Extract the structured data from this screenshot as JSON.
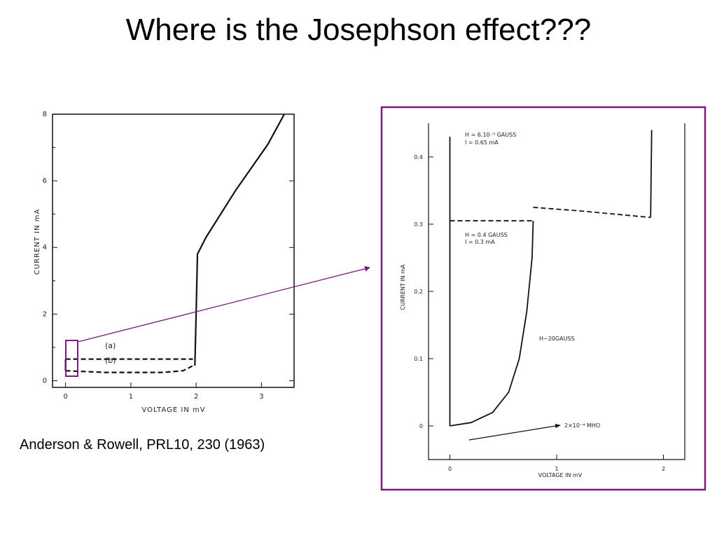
{
  "title": "Where is the Josephson effect???",
  "caption": "Anderson & Rowell, PRL10, 230 (1963)",
  "colors": {
    "frame": "#7a1a7a",
    "curve": "#111111"
  },
  "chart_data": [
    {
      "type": "line",
      "xlabel": "VOLTAGE IN mV",
      "ylabel": "CURRENT IN mA",
      "xlim": [
        -0.2,
        3.5
      ],
      "ylim": [
        -0.2,
        8
      ],
      "xticks": [
        "0",
        "1",
        "2",
        "3"
      ],
      "yticks": [
        "0",
        "2",
        "4",
        "6",
        "8"
      ],
      "annotations": [
        "(a)",
        "(b)"
      ],
      "series": [
        {
          "style": "solid",
          "points": [
            [
              1.98,
              0.45
            ],
            [
              2.0,
              2.0
            ],
            [
              2.02,
              3.8
            ],
            [
              2.15,
              4.3
            ],
            [
              2.6,
              5.7
            ],
            [
              3.1,
              7.1
            ],
            [
              3.35,
              8.0
            ]
          ]
        },
        {
          "style": "dashed",
          "name": "(a)",
          "points": [
            [
              0.0,
              0.65
            ],
            [
              0.6,
              0.65
            ],
            [
              1.95,
              0.65
            ]
          ]
        },
        {
          "style": "dashed",
          "name": "(b)",
          "points": [
            [
              0.0,
              0.3
            ],
            [
              0.6,
              0.25
            ],
            [
              1.5,
              0.25
            ],
            [
              1.8,
              0.3
            ],
            [
              1.95,
              0.45
            ]
          ]
        },
        {
          "style": "solid",
          "points": [
            [
              0.0,
              0.3
            ],
            [
              0.0,
              0.65
            ]
          ]
        }
      ]
    },
    {
      "type": "line",
      "xlabel": "VOLTAGE IN mV",
      "ylabel": "CURRENT IN mA",
      "xlim": [
        -0.2,
        2.2
      ],
      "ylim": [
        -0.05,
        0.45
      ],
      "xticks": [
        "0",
        "1",
        "2"
      ],
      "yticks": [
        "0",
        "0.1",
        "0.2",
        "0.3",
        "0.4"
      ],
      "annotations": {
        "h1": "H = 6.10⁻³ GAUSS",
        "i1": "I = 0.65 mA",
        "h2": "H = 0.4 GAUSS",
        "i2": "I = 0.3 mA",
        "h3": "H~20GAUSS",
        "conductance": "2×10⁻⁴ MHO"
      },
      "series": [
        {
          "style": "solid",
          "points": [
            [
              0.0,
              0.43
            ],
            [
              0.0,
              0.0
            ]
          ]
        },
        {
          "style": "dashed",
          "points": [
            [
              0.0,
              0.305
            ],
            [
              0.4,
              0.305
            ],
            [
              0.78,
              0.305
            ]
          ]
        },
        {
          "style": "dashed",
          "points": [
            [
              0.78,
              0.325
            ],
            [
              1.2,
              0.32
            ],
            [
              1.88,
              0.31
            ]
          ]
        },
        {
          "style": "solid",
          "points": [
            [
              1.88,
              0.31
            ],
            [
              1.89,
              0.44
            ]
          ]
        },
        {
          "style": "solid",
          "points": [
            [
              0.0,
              0.0
            ],
            [
              0.2,
              0.005
            ],
            [
              0.4,
              0.02
            ],
            [
              0.55,
              0.05
            ],
            [
              0.65,
              0.1
            ],
            [
              0.72,
              0.17
            ],
            [
              0.77,
              0.25
            ],
            [
              0.78,
              0.305
            ]
          ]
        }
      ]
    }
  ]
}
